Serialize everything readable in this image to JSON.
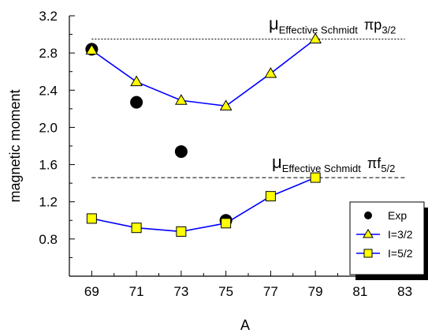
{
  "chart_data": {
    "type": "line",
    "xlabel": "A",
    "ylabel": "magnetic moment",
    "xlim": [
      68,
      84
    ],
    "ylim": [
      0.4,
      3.2
    ],
    "x_ticks": [
      69,
      71,
      73,
      75,
      77,
      79,
      81,
      83
    ],
    "y_ticks": [
      0.8,
      1.2,
      1.6,
      2.0,
      2.4,
      2.8,
      3.2
    ],
    "y_tick_labels": [
      "0.8",
      "1.2",
      "1.6",
      "2.0",
      "2.4",
      "2.8",
      "3.2"
    ],
    "grid": false,
    "legend_position": "bottom-right",
    "series": [
      {
        "name": "Exp",
        "marker": "circle",
        "color": "#000000",
        "line": false,
        "x": [
          69,
          71,
          73,
          75
        ],
        "y": [
          2.84,
          2.27,
          1.74,
          1.0
        ]
      },
      {
        "name": "I=3/2",
        "marker": "triangle",
        "color": "#0000ff",
        "marker_fill": "#ffff00",
        "line": true,
        "x": [
          69,
          71,
          73,
          75,
          77,
          79
        ],
        "y": [
          2.83,
          2.49,
          2.29,
          2.23,
          2.58,
          2.95
        ]
      },
      {
        "name": "I=5/2",
        "marker": "square",
        "color": "#0000ff",
        "marker_fill": "#ffff00",
        "line": true,
        "x": [
          69,
          71,
          73,
          75,
          77,
          79
        ],
        "y": [
          1.02,
          0.92,
          0.88,
          0.97,
          1.26,
          1.46
        ]
      }
    ],
    "reference_lines": [
      {
        "style": "dotted",
        "y": 2.95,
        "x_from": 69,
        "x_to": 83,
        "label_mu": "μ",
        "label_sub": "Effective Schmidt",
        "label_orbital": "πp",
        "label_orbital_sub": "3/2"
      },
      {
        "style": "dashed",
        "y": 1.46,
        "x_from": 69,
        "x_to": 83,
        "label_mu": "μ",
        "label_sub": "Effective Schmidt",
        "label_orbital": "πf",
        "label_orbital_sub": "5/2"
      }
    ]
  }
}
